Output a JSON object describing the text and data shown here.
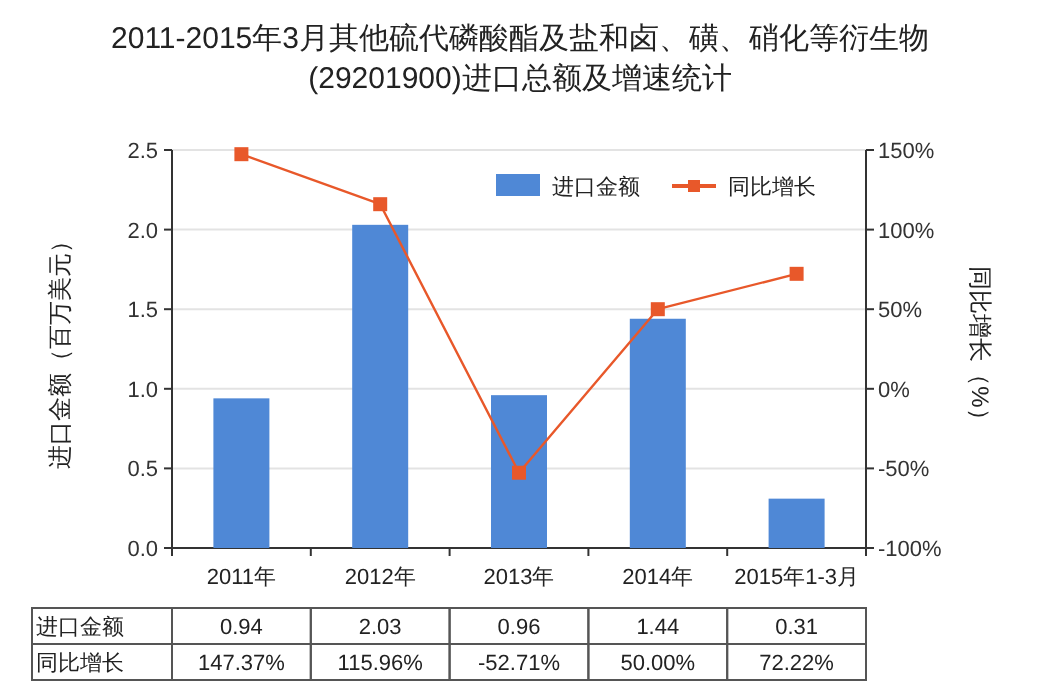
{
  "chart_data": {
    "type": "bar",
    "title": "2011-2015年3月其他硫代磷酸酯及盐和卤、磺、硝化等衍生物(29201900)进口总额及增速统计",
    "ylabel": "进口金额（百万美元）",
    "y2label": "同比增长（%）",
    "categories": [
      "2011年",
      "2012年",
      "2013年",
      "2014年",
      "2015年1-3月"
    ],
    "series": [
      {
        "name": "进口金额",
        "color": "#4f88d6",
        "values": [
          0.94,
          2.03,
          0.96,
          1.44,
          0.31
        ],
        "value_labels": [
          "0.94",
          "2.03",
          "0.96",
          "1.44",
          "0.31"
        ]
      },
      {
        "name": "同比增长",
        "type": "line",
        "axis": "y2",
        "color": "#e8582a",
        "marker": "square",
        "values": [
          147.37,
          115.96,
          -52.71,
          50.0,
          72.22
        ],
        "value_labels": [
          "147.37%",
          "115.96%",
          "-52.71%",
          "50.00%",
          "72.22%"
        ]
      }
    ],
    "ylim": [
      0,
      2.5
    ],
    "yticks": [
      {
        "value": 0,
        "label": "0.0"
      },
      0.5,
      {
        "value": 1,
        "label": "1.0"
      },
      1.5,
      {
        "value": 2,
        "label": "2.0"
      },
      2.5
    ],
    "y2lim": [
      -100,
      150
    ],
    "y2ticks": [
      {
        "value": -100,
        "label": "-100%"
      },
      {
        "value": -50,
        "label": "-50%"
      },
      {
        "value": 0,
        "label": "0%"
      },
      {
        "value": 50,
        "label": "50%"
      },
      {
        "value": 100,
        "label": "100%"
      },
      {
        "value": 150,
        "label": "150%"
      }
    ],
    "grid": "y",
    "legend": "top right"
  }
}
